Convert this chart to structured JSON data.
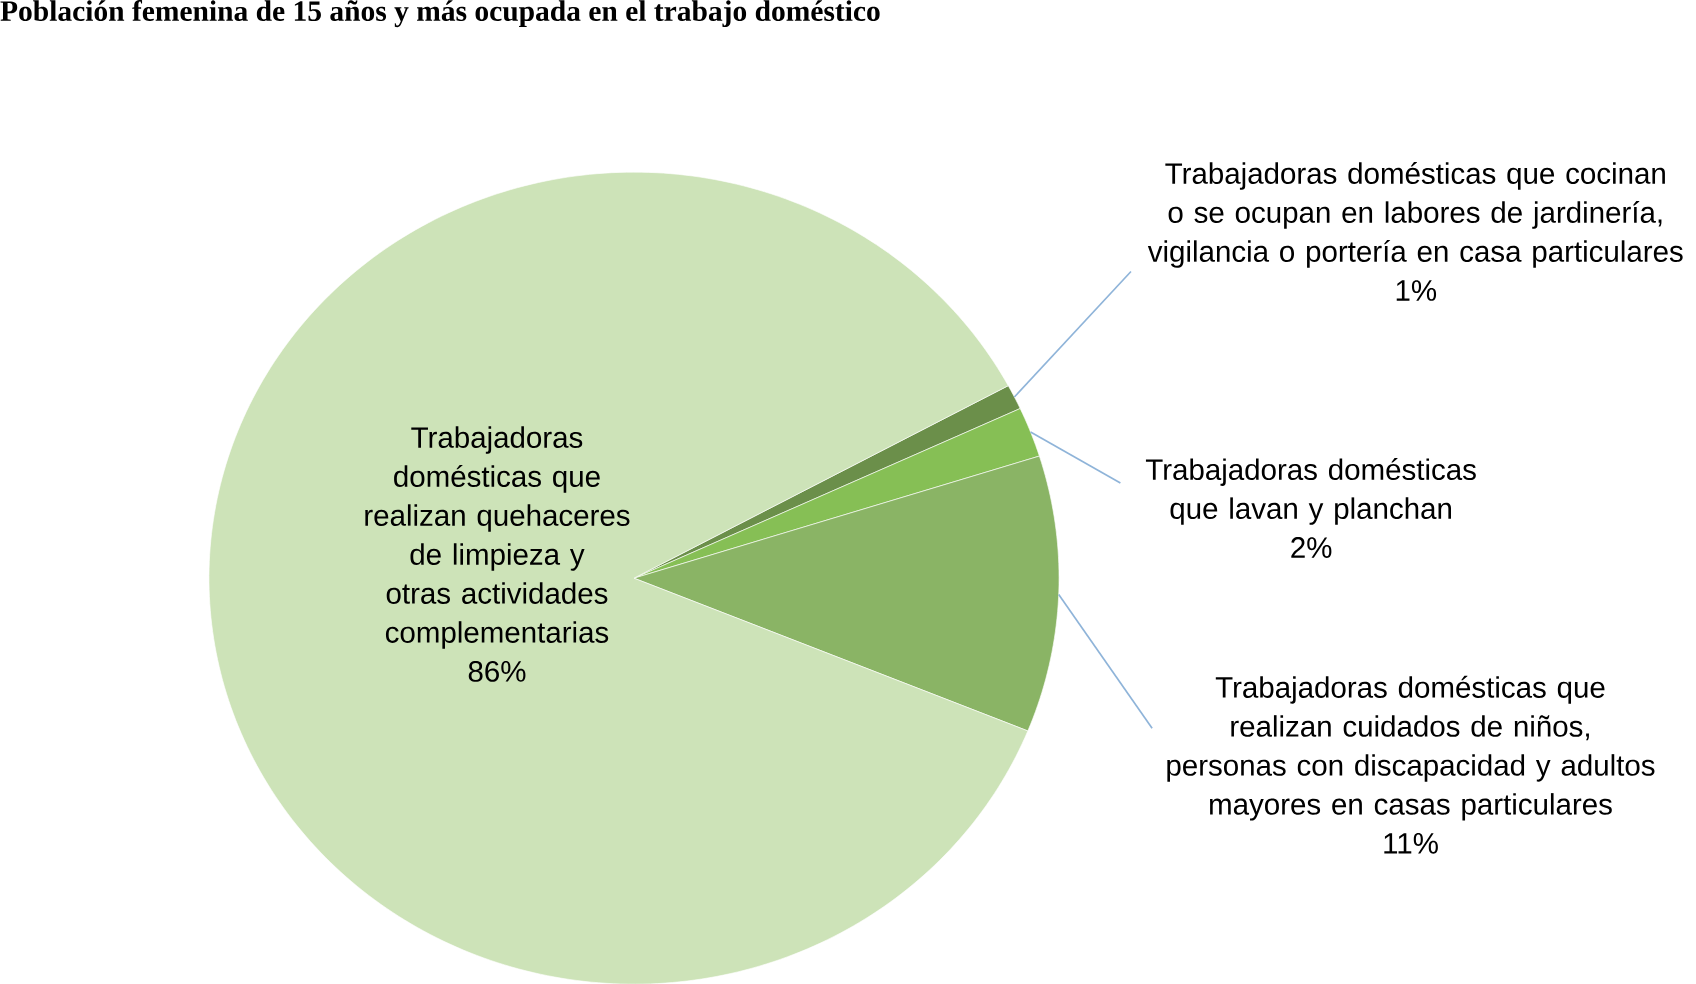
{
  "chart_data": {
    "type": "pie",
    "title": "Población femenina de 15 años y más ocupada en el trabajo doméstico",
    "categories": [
      "Trabajadoras domésticas que cocinan o se ocupan en labores de jardinería, vigilancia o portería en casa particulares",
      "Trabajadoras domésticas que lavan y planchan",
      "Trabajadoras domésticas que realizan cuidados de niños, personas con discapacidad y adultos mayores en casas particulares",
      "Trabajadoras domésticas que realizan quehaceres de limpieza  y otras actividades complementarias"
    ],
    "values": [
      1,
      2,
      11,
      86
    ],
    "colors": [
      "#6b8f4a",
      "#86bf55",
      "#8ab465",
      "#cde3b8"
    ],
    "value_labels": [
      "1%",
      "2%",
      "11%",
      "86%"
    ]
  }
}
